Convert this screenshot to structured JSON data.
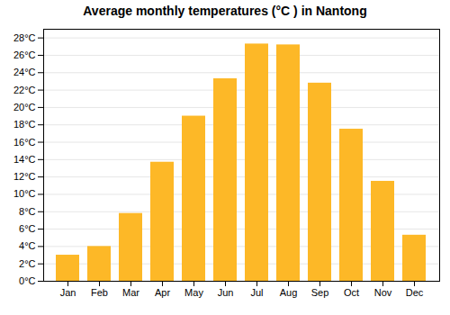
{
  "chart_data": {
    "type": "bar",
    "title": "Average monthly temperatures (°C ) in Nantong",
    "categories": [
      "Jan",
      "Feb",
      "Mar",
      "Apr",
      "May",
      "Jun",
      "Jul",
      "Aug",
      "Sep",
      "Oct",
      "Nov",
      "Dec"
    ],
    "values": [
      3.0,
      4.0,
      7.8,
      13.7,
      19.0,
      23.3,
      27.3,
      27.2,
      22.8,
      17.5,
      11.5,
      5.3
    ],
    "color": "#FDB827",
    "ylim": [
      0,
      29
    ],
    "yticks": [
      {
        "value": 0,
        "label": "0°C"
      },
      {
        "value": 2,
        "label": "2°C"
      },
      {
        "value": 4,
        "label": "4°C"
      },
      {
        "value": 6,
        "label": "6°C"
      },
      {
        "value": 8,
        "label": "8°C"
      },
      {
        "value": 10,
        "label": "10°C"
      },
      {
        "value": 12,
        "label": "12°C"
      },
      {
        "value": 14,
        "label": "14°C"
      },
      {
        "value": 16,
        "label": "16°C"
      },
      {
        "value": 18,
        "label": "18°C"
      },
      {
        "value": 20,
        "label": "20°C"
      },
      {
        "value": 22,
        "label": "22°C"
      },
      {
        "value": 24,
        "label": "24°C"
      },
      {
        "value": 26,
        "label": "26°C"
      },
      {
        "value": 28,
        "label": "28°C"
      }
    ],
    "grid": true
  }
}
